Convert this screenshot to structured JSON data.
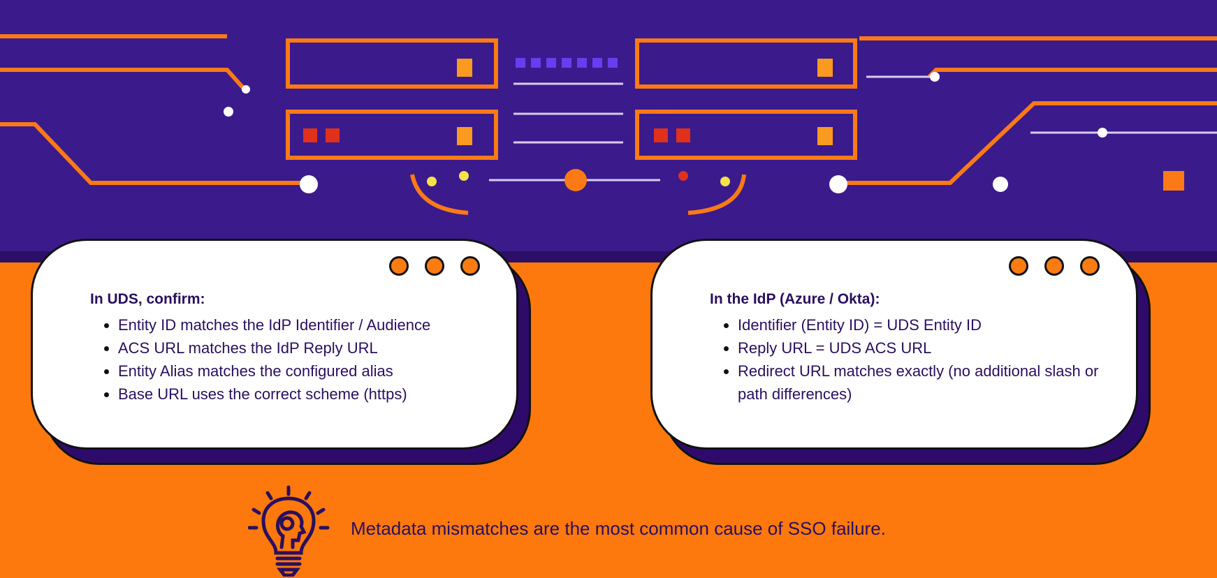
{
  "colors": {
    "banner": "#3b1a8c",
    "background": "#fd790d",
    "text": "#2a0f5e",
    "accent": "#fd7c12"
  },
  "cards": [
    {
      "heading": "In UDS, confirm:",
      "items": [
        "Entity ID matches the IdP Identifier / Audience",
        "ACS URL matches the IdP Reply URL",
        "Entity Alias matches the configured alias",
        "Base URL uses the correct scheme (https)"
      ]
    },
    {
      "heading": "In the IdP (Azure / Okta):",
      "items": [
        "Identifier (Entity ID) = UDS Entity ID",
        "Reply URL = UDS ACS URL",
        "Redirect URL matches exactly (no additional slash or path differences)"
      ]
    }
  ],
  "tip": {
    "icon": "lightbulb-brain-icon",
    "text": "Metadata mismatches are the most common cause of SSO failure."
  }
}
